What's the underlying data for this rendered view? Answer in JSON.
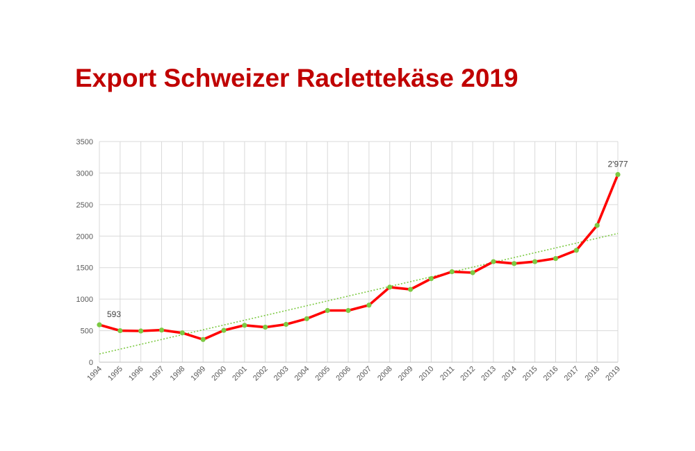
{
  "chart_data": {
    "type": "line",
    "title": "Export Schweizer Raclettekäse 2019",
    "xlabel": "",
    "ylabel": "",
    "ylim": [
      0,
      3500
    ],
    "yticks": [
      0,
      500,
      1000,
      1500,
      2000,
      2500,
      3000,
      3500
    ],
    "grid": true,
    "legend": "none",
    "categories": [
      "1994",
      "1995",
      "1996",
      "1997",
      "1998",
      "1999",
      "2000",
      "2001",
      "2002",
      "2003",
      "2004",
      "2005",
      "2006",
      "2007",
      "2008",
      "2009",
      "2010",
      "2011",
      "2012",
      "2013",
      "2014",
      "2015",
      "2016",
      "2017",
      "2018",
      "2019"
    ],
    "series": [
      {
        "values": [
          593,
          500,
          495,
          510,
          465,
          360,
          505,
          585,
          555,
          600,
          690,
          820,
          820,
          905,
          1190,
          1155,
          1325,
          1435,
          1420,
          1595,
          1565,
          1595,
          1645,
          1775,
          2170,
          2977
        ],
        "color": "#ff0000",
        "marker_color": "#7cc942"
      }
    ],
    "trendline": {
      "type": "linear",
      "color": "#7cc942",
      "style": "dotted"
    },
    "data_labels": [
      {
        "category": "1994",
        "text": "593"
      },
      {
        "category": "2019",
        "text": "2'977"
      }
    ]
  }
}
